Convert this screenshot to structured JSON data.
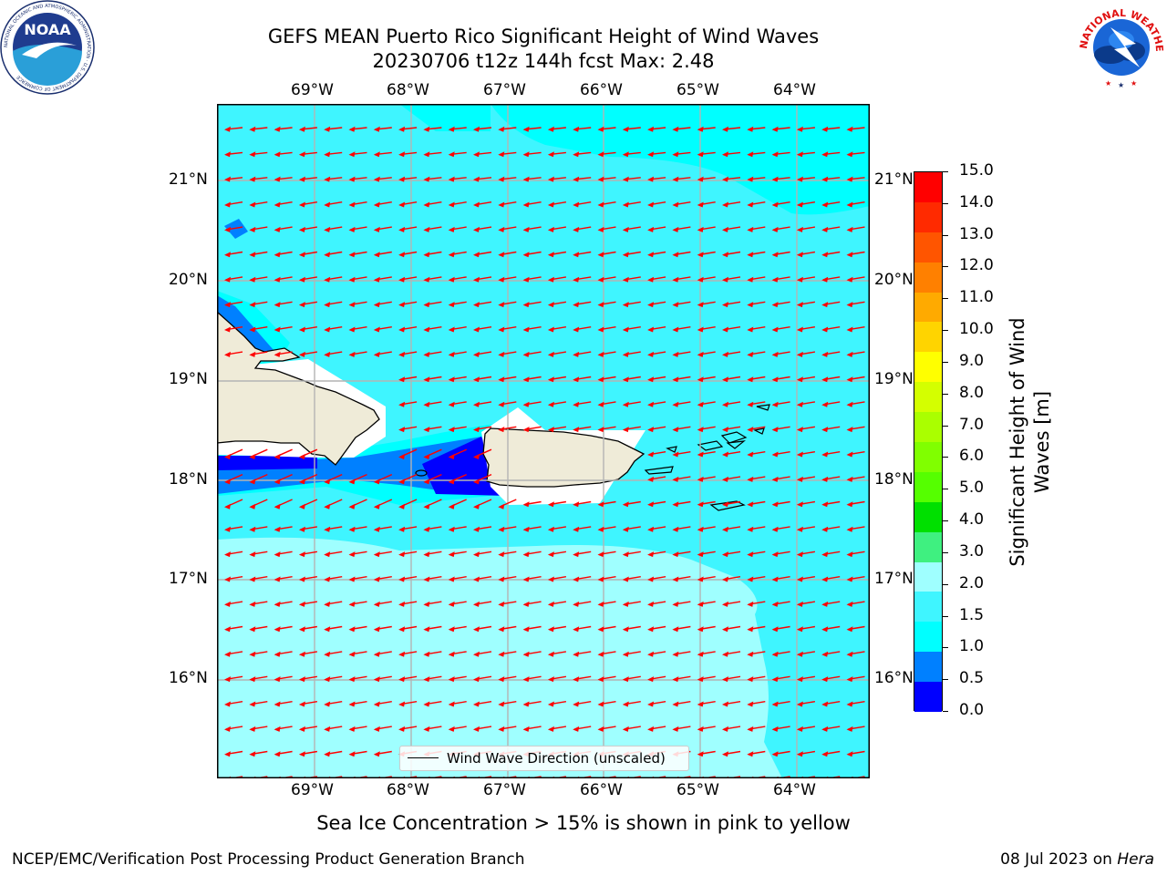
{
  "header": {
    "title_line1": "GEFS MEAN Puerto Rico Significant Height of Wind Waves",
    "title_line2": "20230706 t12z 144h fcst   Max: 2.48"
  },
  "logos": {
    "noaa_text": "NOAA",
    "noaa_ring_text": "NATIONAL OCEANIC AND ATMOSPHERIC ADMINISTRATION · U.S. DEPARTMENT OF COMMERCE",
    "nws_ring_text": "NATIONAL WEATHER SERVICE"
  },
  "map": {
    "lon_labels": [
      "69°W",
      "68°W",
      "67°W",
      "66°W",
      "65°W",
      "64°W"
    ],
    "lat_labels": [
      "21°N",
      "20°N",
      "19°N",
      "18°N",
      "17°N",
      "16°N"
    ],
    "legend_label": "Wind Wave Direction (unscaled)",
    "arrow_color": "#ff0000",
    "land_color": "#efebd8"
  },
  "colorbar": {
    "title": "Significant Height of Wind Waves [m]",
    "ticks": [
      "15.0",
      "14.0",
      "13.0",
      "12.0",
      "11.0",
      "10.0",
      "9.0",
      "8.0",
      "7.0",
      "6.0",
      "5.0",
      "4.0",
      "3.0",
      "2.0",
      "1.5",
      "1.0",
      "0.5",
      "0.0"
    ],
    "colors": [
      "#ff0000",
      "#ff2a00",
      "#ff5500",
      "#ff8000",
      "#ffaa00",
      "#ffd400",
      "#ffff00",
      "#d4ff00",
      "#aaff00",
      "#80ff00",
      "#55ff00",
      "#00e000",
      "#3ff080",
      "#9fffff",
      "#3ff5ff",
      "#00ffff",
      "#0080ff",
      "#0000ff"
    ]
  },
  "footer": {
    "subtitle": "Sea Ice Concentration > 15% is shown in pink to yellow",
    "branch": "NCEP/EMC/Verification Post Processing Product Generation Branch",
    "date": "08 Jul 2023 on",
    "host": "Hera"
  }
}
